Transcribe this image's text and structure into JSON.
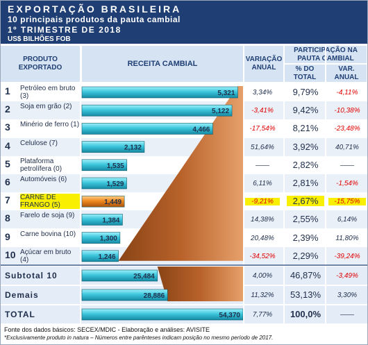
{
  "header": {
    "title": "EXPORTAÇÃO BRASILEIRA",
    "subtitle": "10 principais produtos da pauta cambial",
    "period": "1º TRIMESTRE DE 2018",
    "unit": "US$ BILHÕES FOB"
  },
  "columns": {
    "product": "PRODUTO EXPORTADO",
    "revenue": "RECEITA CAMBIAL",
    "variation": "VARIAÇÃO ANUAL",
    "participation": "PARTICIPAÇÃO NA PAUTA CAMBIAL",
    "pct_total": "% DO TOTAL",
    "var_annual": "VAR. ANUAL"
  },
  "chart_data": {
    "type": "bar",
    "orientation": "horizontal",
    "title": "RECEITA CAMBIAL",
    "categories": [
      "Petróleo em bruto (3)",
      "Soja em grão (2)",
      "Minério de ferro (1)",
      "Celulose (7)",
      "Plataforma petrolífera (0)",
      "Automóveis (6)",
      "CARNE DE FRANGO (5)",
      "Farelo de soja (9)",
      "Carne bovina (10)",
      "Açúcar em bruto (4)"
    ],
    "values": [
      5.321,
      5.122,
      4.466,
      2.132,
      1.535,
      1.529,
      1.449,
      1.384,
      1.3,
      1.246
    ],
    "value_labels": [
      "5,321",
      "5,122",
      "4,466",
      "2,132",
      "1,535",
      "1,529",
      "1,449",
      "1,384",
      "1,300",
      "1,246"
    ],
    "xlim": [
      0,
      5.5
    ],
    "totals": {
      "subtotal": {
        "value": 25.484,
        "label": "25,484"
      },
      "others": {
        "value": 28.886,
        "label": "28,886"
      },
      "total": {
        "value": 54.37,
        "label": "54,370"
      },
      "xlim": [
        0,
        54.37
      ]
    }
  },
  "rows": [
    {
      "rank": "1",
      "product": "Petróleo em bruto (3)",
      "variation": "3,34%",
      "pct": "9,79%",
      "var": "-4,11%",
      "var_neg": false,
      "vv_neg": true
    },
    {
      "rank": "2",
      "product": "Soja em grão (2)",
      "variation": "-3,41%",
      "pct": "9,42%",
      "var": "-10,38%",
      "var_neg": true,
      "vv_neg": true
    },
    {
      "rank": "3",
      "product": "Minério de ferro (1)",
      "variation": "-17,54%",
      "pct": "8,21%",
      "var": "-23,48%",
      "var_neg": true,
      "vv_neg": true
    },
    {
      "rank": "4",
      "product": "Celulose (7)",
      "variation": "51,64%",
      "pct": "3,92%",
      "var": "40,71%",
      "var_neg": false,
      "vv_neg": false
    },
    {
      "rank": "5",
      "product": "Plataforma petrolífera (0)",
      "variation": "——",
      "pct": "2,82%",
      "var": "——",
      "var_neg": false,
      "vv_neg": false
    },
    {
      "rank": "6",
      "product": "Automóveis (6)",
      "variation": "6,11%",
      "pct": "2,81%",
      "var": "-1,54%",
      "var_neg": false,
      "vv_neg": true
    },
    {
      "rank": "7",
      "product": "CARNE DE FRANGO (5)",
      "variation": "-9,21%",
      "pct": "2,67%",
      "var": "-15,75%",
      "var_neg": true,
      "vv_neg": true,
      "highlight": true
    },
    {
      "rank": "8",
      "product": "Farelo de soja (9)",
      "variation": "14,38%",
      "pct": "2,55%",
      "var": "6,14%",
      "var_neg": false,
      "vv_neg": false
    },
    {
      "rank": "9",
      "product": "Carne bovina (10)",
      "variation": "20,48%",
      "pct": "2,39%",
      "var": "11,80%",
      "var_neg": false,
      "vv_neg": false
    },
    {
      "rank": "10",
      "product": "Açúcar em bruto (4)",
      "variation": "-34,52%",
      "pct": "2,29%",
      "var": "-39,24%",
      "var_neg": true,
      "vv_neg": true
    }
  ],
  "summary": [
    {
      "label": "Subtotal 10",
      "variation": "4,00%",
      "pct": "46,87%",
      "var": "-3,49%",
      "var_neg": true
    },
    {
      "label": "Demais",
      "variation": "11,32%",
      "pct": "53,13%",
      "var": "3,30%",
      "var_neg": false
    },
    {
      "label": "TOTAL",
      "variation": "7,77%",
      "pct": "100,0%",
      "var": "——",
      "var_neg": false
    }
  ],
  "footer": {
    "source": "Fonte dos dados básicos: SECEX/MDIC - Elaboração e análises: AVISITE",
    "note": "*Exclusivamente produto in natura – Números entre parênteses indicam posição no mesmo período de 2017."
  },
  "colors": {
    "header_bg": "#1f3f74",
    "bar_cyan": "#3cc6dc",
    "bar_highlight": "#f08a1e",
    "wedge": "#b8622a",
    "negative": "#e00000",
    "highlight": "#f8f000"
  }
}
